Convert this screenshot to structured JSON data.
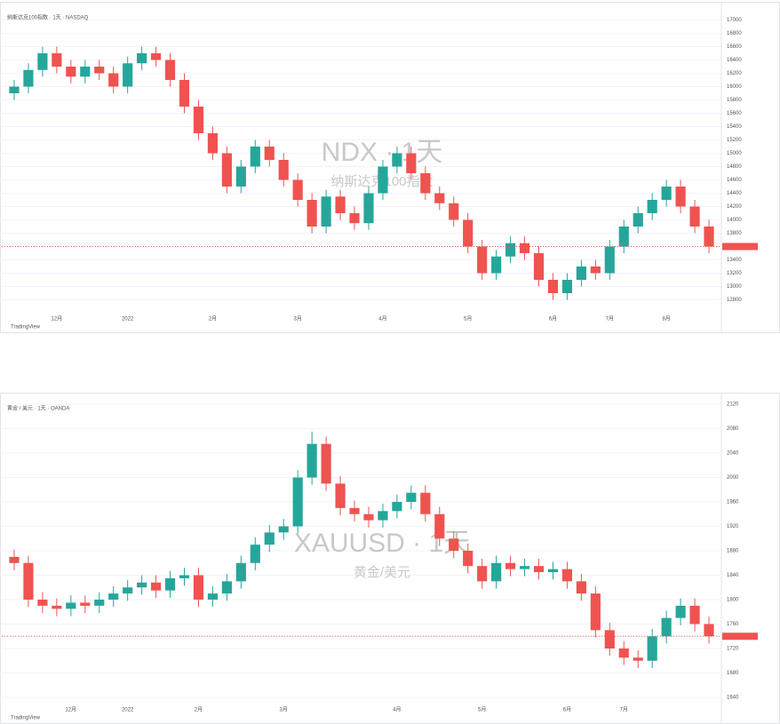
{
  "chart_data": [
    {
      "type": "candlestick",
      "title": "NDX · 1天",
      "subtitle": "纳斯达克100指数",
      "legend": "纳斯达克100指数 · 1天 · NASDAQ",
      "logo": "TradingView",
      "up_color": "#26a69a",
      "down_color": "#ef5350",
      "grid": true,
      "categories": [
        null,
        null,
        null,
        "12月",
        null,
        null,
        null,
        null,
        "2022",
        null,
        null,
        null,
        null,
        null,
        "2月",
        null,
        null,
        null,
        null,
        null,
        "3月",
        null,
        null,
        null,
        null,
        null,
        "4月",
        null,
        null,
        null,
        null,
        null,
        "5月",
        null,
        null,
        null,
        null,
        null,
        "6月",
        null,
        null,
        null,
        "7月",
        null,
        null,
        null,
        "8月",
        null,
        null,
        null
      ],
      "open": [
        15900,
        16000,
        16250,
        16500,
        16300,
        16150,
        16300,
        16200,
        16000,
        16350,
        16500,
        16400,
        16100,
        15700,
        15300,
        15000,
        14500,
        14800,
        15100,
        14900,
        14600,
        14300,
        13900,
        14350,
        14100,
        13950,
        14400,
        14800,
        15000,
        14700,
        14400,
        14250,
        14000,
        13600,
        13200,
        13450,
        13650,
        13500,
        13100,
        12900,
        13100,
        13300,
        13200,
        13600,
        13900,
        14100,
        14300,
        14500,
        14200,
        13900
      ],
      "high": [
        16100,
        16350,
        16600,
        16600,
        16400,
        16400,
        16400,
        16300,
        16450,
        16600,
        16600,
        16500,
        16200,
        15800,
        15400,
        15100,
        14900,
        15200,
        15200,
        15000,
        14700,
        14400,
        14450,
        14450,
        14200,
        14500,
        14900,
        15100,
        15100,
        14800,
        14500,
        14350,
        14100,
        13700,
        13550,
        13750,
        13750,
        13600,
        13200,
        13200,
        13400,
        13400,
        13700,
        14000,
        14200,
        14400,
        14600,
        14600,
        14300,
        14000
      ],
      "low": [
        15800,
        15900,
        16150,
        16200,
        16050,
        16050,
        16100,
        15900,
        15900,
        16250,
        16300,
        16000,
        15600,
        15200,
        14900,
        14400,
        14400,
        14700,
        14800,
        14500,
        14200,
        13800,
        13800,
        14000,
        13850,
        13850,
        14300,
        14700,
        14600,
        14300,
        14150,
        13900,
        13500,
        13100,
        13100,
        13350,
        13400,
        13000,
        12800,
        12800,
        13000,
        13100,
        13100,
        13500,
        13800,
        14000,
        14200,
        14100,
        13800,
        13500
      ],
      "close": [
        16000,
        16250,
        16500,
        16300,
        16150,
        16300,
        16200,
        16000,
        16350,
        16500,
        16400,
        16100,
        15700,
        15300,
        15000,
        14500,
        14800,
        15100,
        14900,
        14600,
        14300,
        13900,
        14350,
        14100,
        13950,
        14400,
        14800,
        15000,
        14700,
        14400,
        14250,
        14000,
        13600,
        13200,
        13450,
        13650,
        13500,
        13100,
        12900,
        13100,
        13300,
        13200,
        13600,
        13900,
        14100,
        14300,
        14500,
        14200,
        13900,
        13600
      ],
      "ylim": [
        12700,
        17100
      ],
      "yticks": [
        12800,
        13000,
        13200,
        13400,
        13600,
        13800,
        14000,
        14200,
        14400,
        14600,
        14800,
        15000,
        15200,
        15400,
        15600,
        15800,
        16000,
        16200,
        16400,
        16600,
        16800,
        17000
      ]
    },
    {
      "type": "candlestick",
      "title": "XAUUSD · 1天",
      "subtitle": "黄金/美元",
      "legend": "黄金 / 美元 · 1天 · OANDA",
      "logo": "TradingView",
      "up_color": "#26a69a",
      "down_color": "#ef5350",
      "grid": true,
      "categories": [
        null,
        null,
        null,
        null,
        "12月",
        null,
        null,
        null,
        "2022",
        null,
        null,
        null,
        null,
        "2月",
        null,
        null,
        null,
        null,
        null,
        "3月",
        null,
        null,
        null,
        null,
        null,
        null,
        null,
        "4月",
        null,
        null,
        null,
        null,
        null,
        "5月",
        null,
        null,
        null,
        null,
        null,
        "6月",
        null,
        null,
        null,
        "7月",
        null,
        null,
        null,
        null,
        null,
        null
      ],
      "open": [
        1870,
        1860,
        1800,
        1790,
        1785,
        1795,
        1790,
        1800,
        1810,
        1820,
        1828,
        1815,
        1835,
        1840,
        1800,
        1810,
        1830,
        1860,
        1890,
        1910,
        1920,
        2000,
        2055,
        1990,
        1950,
        1940,
        1930,
        1945,
        1960,
        1975,
        1940,
        1900,
        1880,
        1855,
        1830,
        1860,
        1850,
        1855,
        1845,
        1850,
        1830,
        1810,
        1750,
        1720,
        1705,
        1700,
        1740,
        1770,
        1790,
        1760
      ],
      "high": [
        1882,
        1872,
        1812,
        1802,
        1807,
        1807,
        1812,
        1822,
        1832,
        1840,
        1840,
        1847,
        1852,
        1852,
        1822,
        1842,
        1872,
        1902,
        1922,
        1932,
        2012,
        2075,
        2067,
        2002,
        1962,
        1952,
        1957,
        1972,
        1987,
        1987,
        1952,
        1912,
        1892,
        1867,
        1872,
        1872,
        1867,
        1867,
        1862,
        1862,
        1842,
        1822,
        1762,
        1732,
        1717,
        1752,
        1782,
        1802,
        1802,
        1772
      ],
      "low": [
        1848,
        1788,
        1778,
        1773,
        1773,
        1778,
        1778,
        1788,
        1798,
        1808,
        1803,
        1803,
        1823,
        1788,
        1788,
        1798,
        1818,
        1848,
        1878,
        1898,
        1908,
        1988,
        1978,
        1938,
        1928,
        1918,
        1918,
        1933,
        1948,
        1928,
        1888,
        1868,
        1843,
        1818,
        1818,
        1838,
        1838,
        1833,
        1833,
        1818,
        1798,
        1738,
        1708,
        1693,
        1688,
        1688,
        1728,
        1758,
        1748,
        1728
      ],
      "close": [
        1860,
        1800,
        1790,
        1785,
        1795,
        1790,
        1800,
        1810,
        1820,
        1828,
        1815,
        1835,
        1840,
        1800,
        1810,
        1830,
        1860,
        1890,
        1910,
        1920,
        2000,
        2055,
        1990,
        1950,
        1940,
        1930,
        1945,
        1960,
        1975,
        1940,
        1900,
        1880,
        1855,
        1830,
        1860,
        1850,
        1855,
        1845,
        1850,
        1830,
        1810,
        1750,
        1720,
        1705,
        1700,
        1740,
        1770,
        1790,
        1760,
        1740
      ],
      "ylim": [
        1640,
        2120
      ],
      "yticks": [
        1640,
        1680,
        1720,
        1760,
        1800,
        1840,
        1880,
        1920,
        1960,
        2000,
        2040,
        2080,
        2120
      ]
    }
  ]
}
